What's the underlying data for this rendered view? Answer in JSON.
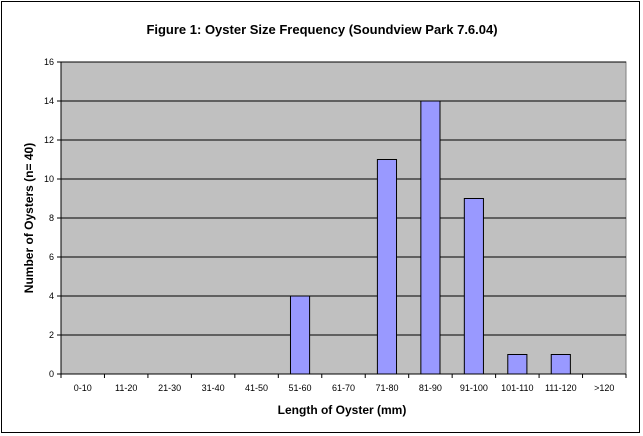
{
  "chart_data": {
    "type": "bar",
    "title": "Figure 1: Oyster Size Frequency (Soundview Park 7.6.04)",
    "xlabel": "Length of Oyster (mm)",
    "ylabel": "Number of Oysters  (n= 40)",
    "categories": [
      "0-10",
      "11-20",
      "21-30",
      "31-40",
      "41-50",
      "51-60",
      "61-70",
      "71-80",
      "81-90",
      "91-100",
      "101-110",
      "111-120",
      ">120"
    ],
    "values": [
      0,
      0,
      0,
      0,
      0,
      4,
      0,
      11,
      14,
      9,
      1,
      1,
      0
    ],
    "ylim": [
      0,
      16
    ],
    "yticks": [
      0,
      2,
      4,
      6,
      8,
      10,
      12,
      14,
      16
    ],
    "grid": true,
    "legend": "none",
    "colors": {
      "plot_background": "#c0c0c0",
      "bar_fill": "#9999ff",
      "bar_stroke": "#000000",
      "gridline": "#000000"
    }
  }
}
